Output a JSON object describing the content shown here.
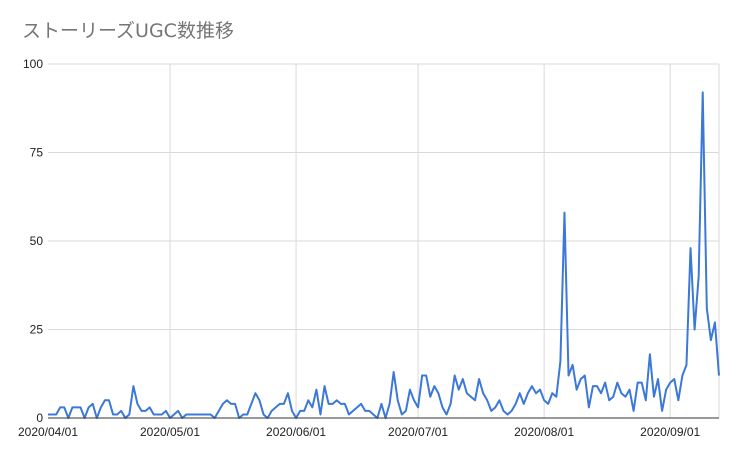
{
  "chart_data": {
    "type": "line",
    "title": "ストーリーズUGC数推移",
    "xlabel": "",
    "ylabel": "",
    "x_start": "2020/04/01",
    "x_ticks": [
      "2020/04/01",
      "2020/05/01",
      "2020/06/01",
      "2020/07/01",
      "2020/08/01",
      "2020/09/01"
    ],
    "y_ticks": [
      0,
      25,
      50,
      75,
      100
    ],
    "ylim": [
      0,
      100
    ],
    "grid": true,
    "legend": "none",
    "line_color": "#3c78d8",
    "series": [
      {
        "name": "",
        "values": [
          1,
          1,
          1,
          3,
          3,
          0,
          3,
          3,
          3,
          0,
          3,
          4,
          0,
          3,
          5,
          5,
          1,
          1,
          2,
          0,
          1,
          9,
          4,
          2,
          2,
          3,
          1,
          1,
          1,
          2,
          0,
          1,
          2,
          0,
          1,
          1,
          1,
          1,
          1,
          1,
          1,
          0,
          2,
          4,
          5,
          4,
          4,
          0,
          1,
          1,
          4,
          7,
          5,
          1,
          0,
          2,
          3,
          4,
          4,
          7,
          2,
          0,
          2,
          2,
          5,
          3,
          8,
          1,
          9,
          4,
          4,
          5,
          4,
          4,
          1,
          2,
          3,
          4,
          2,
          2,
          1,
          0,
          4,
          0,
          4,
          13,
          5,
          1,
          2,
          8,
          5,
          3,
          12,
          12,
          6,
          9,
          7,
          3,
          1,
          4,
          12,
          8,
          11,
          7,
          6,
          5,
          11,
          7,
          5,
          2,
          3,
          5,
          2,
          1,
          2,
          4,
          7,
          4,
          7,
          9,
          7,
          8,
          5,
          4,
          7,
          6,
          16,
          58,
          12,
          15,
          8,
          11,
          12,
          3,
          9,
          9,
          7,
          10,
          5,
          6,
          10,
          7,
          6,
          8,
          2,
          10,
          10,
          5,
          18,
          6,
          11,
          2,
          8,
          10,
          11,
          5,
          12,
          15,
          48,
          25,
          40,
          92,
          31,
          22,
          27,
          12
        ]
      }
    ]
  }
}
